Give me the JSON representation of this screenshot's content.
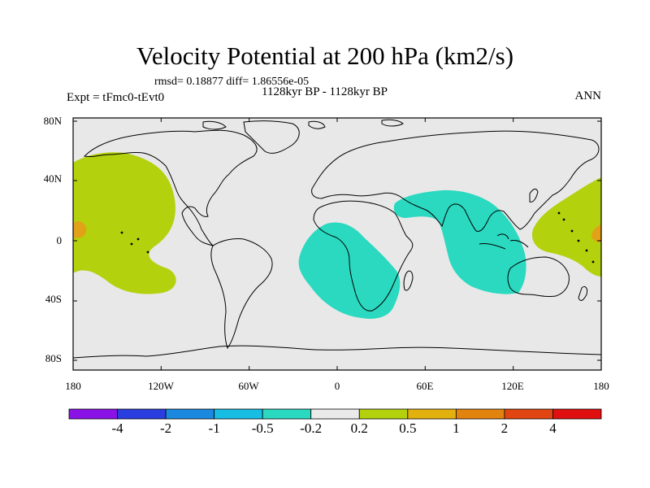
{
  "title": "Velocity Potential at 200 hPa (km2/s)",
  "stats": "rmsd= 0.18877 diff= 1.86556e-05",
  "period": "1128kyr BP - 1128kyr BP",
  "experiment": "Expt = tFmc0-tEvt0",
  "season": "ANN",
  "y_axis": [
    "80N",
    "40N",
    "0",
    "40S",
    "80S"
  ],
  "x_axis": [
    "180",
    "120W",
    "60W",
    "0",
    "60E",
    "120E",
    "180"
  ],
  "colors": {
    "background": "#e8e8e8",
    "positive_low": "#b3d10d",
    "positive_mid": "#e2a218",
    "negative_low": "#2ad9c0",
    "coast": "#000000"
  },
  "anomaly_regions": [
    {
      "name": "east pacific positive",
      "class": "0.2-0.5",
      "color": "#b3d10d"
    },
    {
      "name": "central pacific core",
      "class": "0.5-1",
      "color": "#e2a218"
    },
    {
      "name": "atlantic-africa negative",
      "class": "-0.5--0.2",
      "color": "#2ad9c0"
    },
    {
      "name": "indian ocean-maritime continent negative",
      "class": "-0.5--0.2",
      "color": "#2ad9c0"
    },
    {
      "name": "west pacific positive",
      "class": "0.2-0.5",
      "color": "#b3d10d"
    },
    {
      "name": "west pacific core",
      "class": "0.5-1",
      "color": "#e2a218"
    }
  ],
  "colorbar": {
    "colors": [
      "#8a12e6",
      "#2a3ee0",
      "#1b89e0",
      "#17bde2",
      "#2ad9c0",
      "#eaeaea",
      "#b3d10d",
      "#e2b10e",
      "#e2820f",
      "#e04512",
      "#e01010"
    ],
    "labels": [
      "-4",
      "-2",
      "-1",
      "-0.5",
      "-0.2",
      "0.2",
      "0.5",
      "1",
      "2",
      "4"
    ]
  }
}
